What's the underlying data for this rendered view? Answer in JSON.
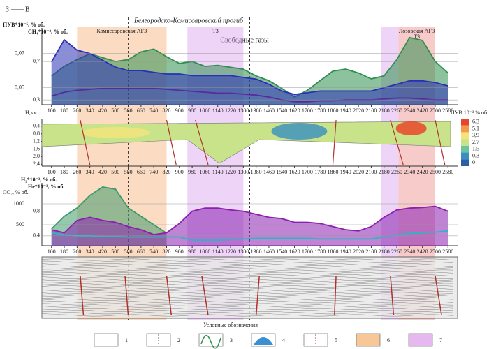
{
  "header": {
    "west": "З",
    "east": "В",
    "trough": "Белгородско-Комиссаровский прогиб"
  },
  "zones": [
    {
      "label": "Комиссаровская АГЗ",
      "xlim": [
        260,
        820
      ],
      "color": "#f7b27a"
    },
    {
      "label": "Т3",
      "xlim": [
        950,
        1300
      ],
      "color": "#d9a0ec"
    },
    {
      "xlim": [
        2160,
        2270
      ],
      "color": "#d9a0ec"
    },
    {
      "label": "Лозовская АГЗ",
      "sublabel": "Т3",
      "xlim": [
        2270,
        2500
      ],
      "color": "#f08c8c"
    }
  ],
  "dashed_x": [
    580,
    1340
  ],
  "chart_data": [
    {
      "type": "line",
      "title": "Свободные газы",
      "y_label": "ПУВ*10⁻⁵, % об.",
      "y2_label": "CH₄*10⁻³, % об.",
      "x": [
        100,
        180,
        260,
        340,
        420,
        500,
        580,
        660,
        740,
        820,
        900,
        980,
        1060,
        1140,
        1220,
        1300,
        1380,
        1460,
        1540,
        1620,
        1700,
        1780,
        1860,
        1940,
        2020,
        2100,
        2180,
        2260,
        2340,
        2420,
        2500,
        2580
      ],
      "xlim": [
        40,
        2640
      ],
      "xticks": [
        100,
        180,
        260,
        340,
        420,
        500,
        580,
        660,
        740,
        820,
        900,
        980,
        1060,
        1140,
        1220,
        1300,
        1380,
        1460,
        1540,
        1620,
        1700,
        1780,
        1860,
        1940,
        2020,
        2100,
        2180,
        2260,
        2340,
        2420,
        2500,
        2580
      ],
      "ylim": [
        0.25,
        1.05
      ],
      "yticks": [
        {
          "value": 0.3,
          "label": "0,3"
        },
        {
          "value": 0.7,
          "label": "0,7"
        }
      ],
      "y2lim": [
        0.04,
        0.085
      ],
      "y2ticks": [
        {
          "value": 0.05,
          "label": "0,05"
        },
        {
          "value": 0.07,
          "label": "0,07"
        }
      ],
      "series": [
        {
          "color": "#2f8f4e",
          "area": true,
          "values": [
            0.55,
            0.65,
            0.72,
            0.78,
            0.74,
            0.7,
            0.72,
            0.8,
            0.83,
            0.75,
            0.68,
            0.7,
            0.65,
            0.66,
            0.64,
            0.62,
            0.55,
            0.5,
            0.42,
            0.33,
            0.4,
            0.5,
            0.6,
            0.62,
            0.58,
            0.52,
            0.55,
            0.72,
            0.95,
            0.92,
            0.7,
            0.58
          ]
        },
        {
          "color": "#2a2fb8",
          "area": true,
          "axis": "y2",
          "values": [
            0.065,
            0.078,
            0.072,
            0.07,
            0.066,
            0.062,
            0.06,
            0.06,
            0.059,
            0.058,
            0.058,
            0.057,
            0.057,
            0.057,
            0.057,
            0.056,
            0.055,
            0.052,
            0.048,
            0.046,
            0.047,
            0.048,
            0.048,
            0.048,
            0.048,
            0.048,
            0.05,
            0.052,
            0.054,
            0.054,
            0.053,
            0.051
          ]
        },
        {
          "color": "#5a2a9c",
          "values": [
            0.34,
            0.38,
            0.4,
            0.41,
            0.42,
            0.42,
            0.42,
            0.42,
            0.42,
            0.41,
            0.4,
            0.39,
            0.38,
            0.37,
            0.37,
            0.36,
            0.35,
            0.33,
            0.3,
            0.28,
            0.28,
            0.29,
            0.29,
            0.3,
            0.3,
            0.3,
            0.31,
            0.32,
            0.32,
            0.31,
            0.3,
            0.3
          ]
        }
      ]
    },
    {
      "type": "section",
      "y_label": "Н,км.",
      "xlim": [
        40,
        2640
      ],
      "xticks": [
        100,
        180,
        260,
        340,
        420,
        500,
        580,
        660,
        740,
        820,
        900,
        980,
        1060,
        1140,
        1220,
        1300,
        1380,
        1460,
        1540,
        1620,
        1700,
        1780,
        1860,
        1940,
        2020,
        2100,
        2180,
        2260,
        2340,
        2420,
        2500,
        2580
      ],
      "ylim": [
        0,
        2.5
      ],
      "yticks": [
        {
          "value": 0.4,
          "label": "0,4"
        },
        {
          "value": 0.8,
          "label": "0,8"
        },
        {
          "value": 1.2,
          "label": "1,2"
        },
        {
          "value": 1.6,
          "label": "1,6"
        },
        {
          "value": 2.0,
          "label": "2,0"
        },
        {
          "value": 2.4,
          "label": "2,4"
        }
      ],
      "colorbar": {
        "title": "ПУВ 10⁻³ % об.",
        "ticks": [
          {
            "value": 6.3,
            "label": "6,3"
          },
          {
            "value": 5.1,
            "label": "5,1"
          },
          {
            "value": 3.9,
            "label": "3,9"
          },
          {
            "value": 2.7,
            "label": "2,7"
          },
          {
            "value": 1.5,
            "label": "1,5"
          },
          {
            "value": 0.3,
            "label": "0,3"
          },
          0
        ],
        "colors": [
          "#e8462a",
          "#f39a4a",
          "#f5e37a",
          "#c8e38a",
          "#6cc3a0",
          "#3a8fc0",
          "#2a5fa8"
        ]
      }
    },
    {
      "type": "line",
      "y_label": "He*10⁻³, % об.",
      "y2_label": "CO₂, % об.",
      "y3_label": "H₂*10⁻³, % об.",
      "x": [
        100,
        180,
        260,
        340,
        420,
        500,
        580,
        660,
        740,
        820,
        900,
        980,
        1060,
        1140,
        1220,
        1300,
        1380,
        1460,
        1540,
        1620,
        1700,
        1780,
        1860,
        1940,
        2020,
        2100,
        2180,
        2260,
        2340,
        2420,
        2500,
        2580
      ],
      "xlim": [
        40,
        2640
      ],
      "xticks": [
        100,
        180,
        260,
        340,
        420,
        500,
        580,
        660,
        740,
        820,
        900,
        980,
        1060,
        1140,
        1220,
        1300,
        1380,
        1460,
        1540,
        1620,
        1700,
        1780,
        1860,
        1940,
        2020,
        2100,
        2180,
        2260,
        2340,
        2420,
        2500,
        2580
      ],
      "ylim": [
        0.24,
        1.26
      ],
      "yticks": [
        {
          "value": 0.4,
          "label": "0,4"
        },
        {
          "value": 0.8,
          "label": "0,8"
        }
      ],
      "y2lim": [
        0,
        1500
      ],
      "y2ticks": [
        500,
        1000
      ],
      "series": [
        {
          "color": "#3f9a6a",
          "area": true,
          "axis": "y2",
          "values": [
            400,
            700,
            900,
            1200,
            1400,
            1350,
            900,
            700,
            500,
            300,
            null,
            null,
            null,
            null,
            null,
            null,
            null,
            null,
            null,
            null,
            null,
            null,
            null,
            null,
            null,
            null,
            null,
            null,
            null,
            null,
            null,
            null
          ]
        },
        {
          "color": "#8a1fb0",
          "area": true,
          "values": [
            0.5,
            0.45,
            0.65,
            0.7,
            0.65,
            0.62,
            0.55,
            0.5,
            0.42,
            0.45,
            0.6,
            0.8,
            0.85,
            0.85,
            0.82,
            0.8,
            0.75,
            0.7,
            0.68,
            0.62,
            0.62,
            0.6,
            0.55,
            0.5,
            0.48,
            0.55,
            0.7,
            0.82,
            0.85,
            0.86,
            0.88,
            0.8
          ]
        },
        {
          "color": "#2ab6c8",
          "values": [
            0.45,
            0.42,
            0.4,
            0.4,
            0.39,
            0.39,
            0.38,
            0.38,
            0.38,
            0.38,
            0.38,
            0.33,
            0.33,
            0.33,
            0.34,
            0.35,
            0.36,
            0.36,
            0.36,
            0.36,
            0.36,
            0.35,
            0.35,
            0.35,
            0.35,
            0.35,
            0.38,
            0.42,
            0.44,
            0.45,
            0.46,
            0.48
          ]
        }
      ]
    }
  ],
  "legend": {
    "title": "Условные обозначения",
    "items": [
      "1",
      "2",
      "3",
      "4",
      "5",
      "6",
      "7"
    ]
  }
}
